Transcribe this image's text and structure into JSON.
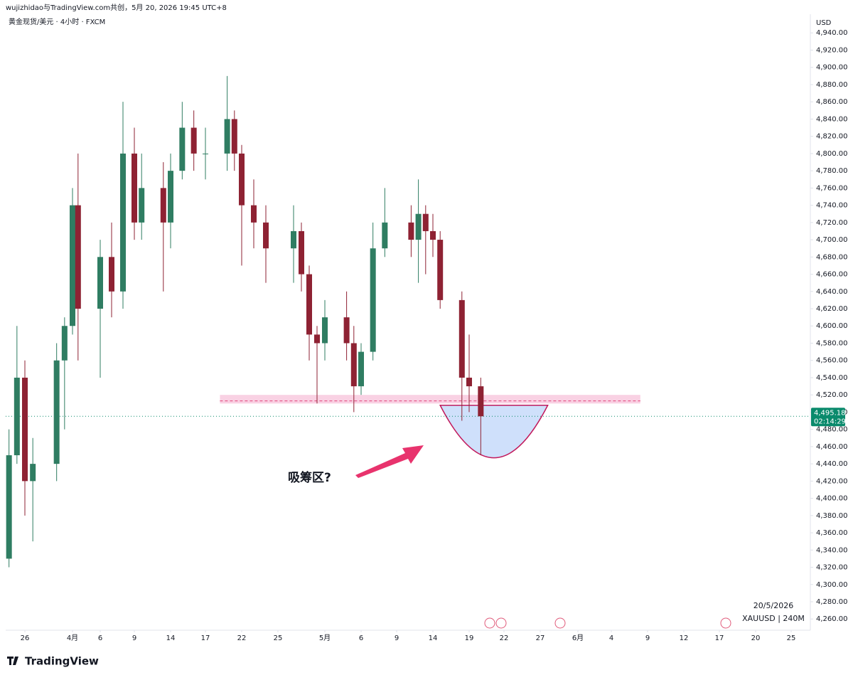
{
  "header": {
    "credit": "wujizhidao与TradingView.com共创，5月 20, 2026 19:45 UTC+8",
    "symbol": "黄金现货/美元 · 4小时 · FXCM"
  },
  "footer": {
    "brand": "TradingView",
    "date": "20/5/2026",
    "ticker": "XAUUSD | 240M"
  },
  "chart_data": {
    "type": "candlestick",
    "currency": "USD",
    "up_color": "#2f7d62",
    "down_color": "#8e2233",
    "x": [
      "2026-03-24",
      "2026-03-25",
      "2026-03-26",
      "2026-03-27",
      "2026-03-30",
      "2026-03-31",
      "2026-04-01",
      "2026-04-02",
      "2026-04-06",
      "2026-04-07",
      "2026-04-08",
      "2026-04-09",
      "2026-04-10",
      "2026-04-13",
      "2026-04-14",
      "2026-04-15",
      "2026-04-16",
      "2026-04-17",
      "2026-04-20",
      "2026-04-21",
      "2026-04-22",
      "2026-04-23",
      "2026-04-24",
      "2026-04-27",
      "2026-04-28",
      "2026-04-29",
      "2026-04-30",
      "2026-05-01",
      "2026-05-04",
      "2026-05-05",
      "2026-05-06",
      "2026-05-07",
      "2026-05-08",
      "2026-05-11",
      "2026-05-12",
      "2026-05-13",
      "2026-05-14",
      "2026-05-15",
      "2026-05-18",
      "2026-05-19",
      "2026-05-20"
    ],
    "open": [
      4330,
      4450,
      4540,
      4420,
      4440,
      4560,
      4600,
      4740,
      4620,
      4680,
      4640,
      4800,
      4720,
      4760,
      4720,
      4780,
      4830,
      4800,
      4800,
      4840,
      4800,
      4740,
      4720,
      4690,
      4710,
      4660,
      4590,
      4580,
      4610,
      4580,
      4530,
      4570,
      4690,
      4720,
      4700,
      4730,
      4710,
      4700,
      4630,
      4540,
      4530
    ],
    "high": [
      4480,
      4600,
      4560,
      4470,
      4580,
      4610,
      4760,
      4800,
      4700,
      4720,
      4860,
      4830,
      4800,
      4790,
      4800,
      4860,
      4850,
      4830,
      4890,
      4850,
      4810,
      4770,
      4740,
      4740,
      4720,
      4670,
      4600,
      4630,
      4640,
      4600,
      4580,
      4720,
      4760,
      4740,
      4770,
      4740,
      4730,
      4710,
      4640,
      4590,
      4540
    ],
    "low": [
      4320,
      4440,
      4380,
      4350,
      4420,
      4480,
      4590,
      4560,
      4540,
      4610,
      4620,
      4700,
      4700,
      4640,
      4690,
      4770,
      4780,
      4770,
      4780,
      4780,
      4670,
      4690,
      4650,
      4650,
      4640,
      4560,
      4510,
      4560,
      4560,
      4500,
      4520,
      4560,
      4680,
      4680,
      4650,
      4660,
      4680,
      4620,
      4490,
      4500,
      4450
    ],
    "close": [
      4450,
      4540,
      4420,
      4440,
      4560,
      4600,
      4740,
      4620,
      4680,
      4640,
      4800,
      4720,
      4760,
      4720,
      4780,
      4830,
      4800,
      4800,
      4840,
      4800,
      4740,
      4720,
      4690,
      4710,
      4660,
      4590,
      4580,
      4610,
      4580,
      4530,
      4570,
      4690,
      4720,
      4700,
      4730,
      4710,
      4700,
      4630,
      4540,
      4530,
      4495.18
    ],
    "ylim": [
      4247,
      4960
    ],
    "yticks": [
      {
        "value": 4260,
        "label": "4,260.00"
      },
      {
        "value": 4280,
        "label": "4,280.00"
      },
      {
        "value": 4300,
        "label": "4,300.00"
      },
      {
        "value": 4320,
        "label": "4,320.00"
      },
      {
        "value": 4340,
        "label": "4,340.00"
      },
      {
        "value": 4360,
        "label": "4,360.00"
      },
      {
        "value": 4380,
        "label": "4,380.00"
      },
      {
        "value": 4400,
        "label": "4,400.00"
      },
      {
        "value": 4420,
        "label": "4,420.00"
      },
      {
        "value": 4440,
        "label": "4,440.00"
      },
      {
        "value": 4460,
        "label": "4,460.00"
      },
      {
        "value": 4480,
        "label": "4,480.00"
      },
      {
        "value": 4500,
        "label": "4,500.00"
      },
      {
        "value": 4520,
        "label": "4,520.00"
      },
      {
        "value": 4540,
        "label": "4,540.00"
      },
      {
        "value": 4560,
        "label": "4,560.00"
      },
      {
        "value": 4580,
        "label": "4,580.00"
      },
      {
        "value": 4600,
        "label": "4,600.00"
      },
      {
        "value": 4620,
        "label": "4,620.00"
      },
      {
        "value": 4640,
        "label": "4,640.00"
      },
      {
        "value": 4660,
        "label": "4,660.00"
      },
      {
        "value": 4680,
        "label": "4,680.00"
      },
      {
        "value": 4700,
        "label": "4,700.00"
      },
      {
        "value": 4720,
        "label": "4,720.00"
      },
      {
        "value": 4740,
        "label": "4,740.00"
      },
      {
        "value": 4760,
        "label": "4,760.00"
      },
      {
        "value": 4780,
        "label": "4,780.00"
      },
      {
        "value": 4800,
        "label": "4,800.00"
      },
      {
        "value": 4820,
        "label": "4,820.00"
      },
      {
        "value": 4840,
        "label": "4,840.00"
      },
      {
        "value": 4860,
        "label": "4,860.00"
      },
      {
        "value": 4880,
        "label": "4,880.00"
      },
      {
        "value": 4900,
        "label": "4,900.00"
      },
      {
        "value": 4920,
        "label": "4,920.00"
      },
      {
        "value": 4940,
        "label": "4,940.00"
      }
    ],
    "xticks": [
      {
        "value": "2026-03-26",
        "label": "26"
      },
      {
        "value": "2026-04-01",
        "label": "4月"
      },
      {
        "value": "2026-04-06",
        "label": "6"
      },
      {
        "value": "2026-04-09",
        "label": "9"
      },
      {
        "value": "2026-04-14",
        "label": "14"
      },
      {
        "value": "2026-04-17",
        "label": "17"
      },
      {
        "value": "2026-04-22",
        "label": "22"
      },
      {
        "value": "2026-04-25",
        "label": "25"
      },
      {
        "value": "2026-05-01",
        "label": "5月"
      },
      {
        "value": "2026-05-06",
        "label": "6"
      },
      {
        "value": "2026-05-09",
        "label": "9"
      },
      {
        "value": "2026-05-14",
        "label": "14"
      },
      {
        "value": "2026-05-19",
        "label": "19"
      },
      {
        "value": "2026-05-22",
        "label": "22"
      },
      {
        "value": "2026-05-27",
        "label": "27"
      },
      {
        "value": "2026-06-01",
        "label": "6月"
      },
      {
        "value": "2026-06-04",
        "label": "4"
      },
      {
        "value": "2026-06-09",
        "label": "9"
      },
      {
        "value": "2026-06-12",
        "label": "12"
      },
      {
        "value": "2026-06-17",
        "label": "17"
      },
      {
        "value": "2026-06-20",
        "label": "20"
      },
      {
        "value": "2026-06-25",
        "label": "25"
      }
    ],
    "grid": false,
    "last_price": {
      "value": 4495.18,
      "label": "4,495.18",
      "countdown": "02:14:29",
      "color": "#0a8a6c"
    },
    "zone": {
      "low": 4510,
      "high": 4520,
      "line": 4513,
      "start": "2026-04-19",
      "end": "2026-06-08",
      "color": "#f8c6dc"
    },
    "bowl": {
      "start": "2026-05-15",
      "end": "2026-05-28",
      "top": 4508,
      "bottom": 4447,
      "color": "#cfe0fb"
    },
    "annotation": "吸筹区?"
  }
}
